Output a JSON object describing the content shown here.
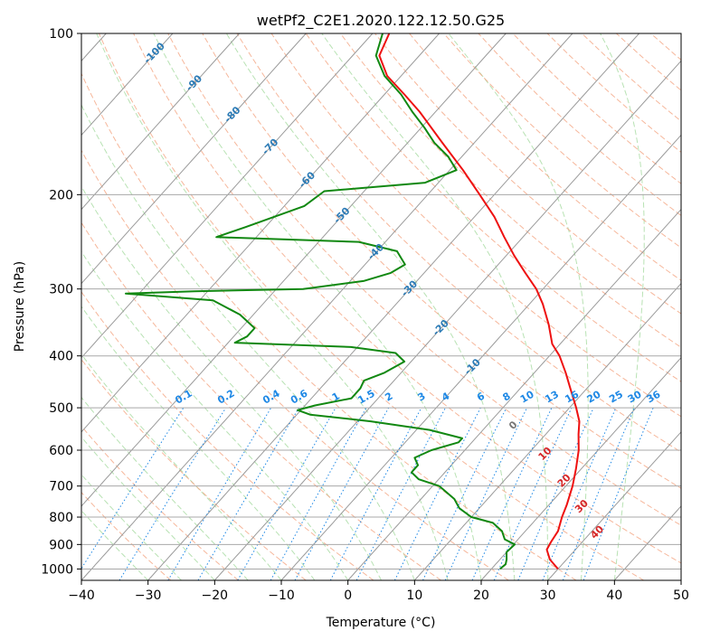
{
  "chart_data": {
    "type": "line",
    "subtype": "skew-t log-p diagram",
    "title": "wetPf2_C2E1.2020.122.12.50.G25",
    "xlabel": "Temperature (°C)",
    "ylabel": "Pressure (hPa)",
    "xlim": [
      -40,
      50
    ],
    "ylim": [
      1050,
      100
    ],
    "y_scale": "log",
    "grid": true,
    "x_ticks": [
      "−40",
      "−30",
      "−20",
      "−10",
      "0",
      "10",
      "20",
      "30",
      "40",
      "50"
    ],
    "y_ticks": [
      "100",
      "200",
      "300",
      "400",
      "500",
      "600",
      "700",
      "800",
      "900",
      "1000"
    ],
    "isotherm_labels": [
      "-100",
      "-90",
      "-80",
      "-70",
      "-60",
      "-50",
      "-40",
      "-30",
      "-20",
      "-10"
    ],
    "mixing_ratio_labels": [
      "0.1",
      "0.2",
      "0.4",
      "0.6",
      "1",
      "1.5",
      "2",
      "3",
      "4",
      "6",
      "8",
      "10",
      "13",
      "16",
      "20",
      "25",
      "30",
      "36"
    ],
    "dry_adiabat_labels": [
      "0",
      "10",
      "20",
      "30",
      "40"
    ],
    "colors": {
      "temperature": "#ee1111",
      "dewpoint": "#118811",
      "isotherm_label": "#2c7bb6",
      "mixing_ratio": "#1e88e5",
      "dry_adiabat": "#f4a582",
      "moist_adiabat": "#a6dba0"
    },
    "series": [
      {
        "name": "Temperature",
        "points": [
          {
            "p": 1000,
            "t": 30.0
          },
          {
            "p": 960,
            "t": 27.5
          },
          {
            "p": 920,
            "t": 25.7
          },
          {
            "p": 890,
            "t": 25.3
          },
          {
            "p": 850,
            "t": 24.9
          },
          {
            "p": 800,
            "t": 23.6
          },
          {
            "p": 760,
            "t": 22.7
          },
          {
            "p": 700,
            "t": 21.0
          },
          {
            "p": 650,
            "t": 19.2
          },
          {
            "p": 600,
            "t": 17.1
          },
          {
            "p": 560,
            "t": 14.9
          },
          {
            "p": 530,
            "t": 13.3
          },
          {
            "p": 500,
            "t": 11.0
          },
          {
            "p": 460,
            "t": 7.5
          },
          {
            "p": 430,
            "t": 4.7
          },
          {
            "p": 400,
            "t": 1.5
          },
          {
            "p": 380,
            "t": -1.2
          },
          {
            "p": 350,
            "t": -4.3
          },
          {
            "p": 320,
            "t": -8.0
          },
          {
            "p": 300,
            "t": -11.0
          },
          {
            "p": 280,
            "t": -14.8
          },
          {
            "p": 260,
            "t": -18.8
          },
          {
            "p": 240,
            "t": -22.8
          },
          {
            "p": 220,
            "t": -27.0
          },
          {
            "p": 200,
            "t": -32.2
          },
          {
            "p": 180,
            "t": -38.0
          },
          {
            "p": 160,
            "t": -44.8
          },
          {
            "p": 140,
            "t": -52.4
          },
          {
            "p": 130,
            "t": -57.0
          },
          {
            "p": 120,
            "t": -62.1
          },
          {
            "p": 110,
            "t": -66.0
          },
          {
            "p": 100,
            "t": -67.5
          }
        ]
      },
      {
        "name": "Dewpoint",
        "points": [
          {
            "p": 1000,
            "t": 21.3
          },
          {
            "p": 980,
            "t": 21.5
          },
          {
            "p": 960,
            "t": 21.0
          },
          {
            "p": 930,
            "t": 20.0
          },
          {
            "p": 900,
            "t": 20.2
          },
          {
            "p": 880,
            "t": 18.0
          },
          {
            "p": 850,
            "t": 16.5
          },
          {
            "p": 820,
            "t": 14.0
          },
          {
            "p": 800,
            "t": 10.0
          },
          {
            "p": 770,
            "t": 7.0
          },
          {
            "p": 740,
            "t": 5.0
          },
          {
            "p": 700,
            "t": 1.0
          },
          {
            "p": 680,
            "t": -3.0
          },
          {
            "p": 660,
            "t": -5.0
          },
          {
            "p": 640,
            "t": -5.0
          },
          {
            "p": 620,
            "t": -6.5
          },
          {
            "p": 600,
            "t": -5.0
          },
          {
            "p": 580,
            "t": -2.0
          },
          {
            "p": 570,
            "t": -2.0
          },
          {
            "p": 550,
            "t": -8.0
          },
          {
            "p": 530,
            "t": -18.0
          },
          {
            "p": 515,
            "t": -28.0
          },
          {
            "p": 505,
            "t": -30.5
          },
          {
            "p": 495,
            "t": -28.5
          },
          {
            "p": 480,
            "t": -24.0
          },
          {
            "p": 460,
            "t": -24.0
          },
          {
            "p": 445,
            "t": -24.5
          },
          {
            "p": 430,
            "t": -22.5
          },
          {
            "p": 410,
            "t": -21.0
          },
          {
            "p": 395,
            "t": -23.5
          },
          {
            "p": 385,
            "t": -31.0
          },
          {
            "p": 378,
            "t": -49.0
          },
          {
            "p": 368,
            "t": -48.0
          },
          {
            "p": 355,
            "t": -48.0
          },
          {
            "p": 335,
            "t": -52.0
          },
          {
            "p": 315,
            "t": -58.0
          },
          {
            "p": 306,
            "t": -72.0
          },
          {
            "p": 303,
            "t": -62.0
          },
          {
            "p": 300,
            "t": -46.0
          },
          {
            "p": 290,
            "t": -38.0
          },
          {
            "p": 280,
            "t": -35.0
          },
          {
            "p": 270,
            "t": -34.0
          },
          {
            "p": 255,
            "t": -37.0
          },
          {
            "p": 245,
            "t": -44.0
          },
          {
            "p": 240,
            "t": -66.0
          },
          {
            "p": 230,
            "t": -63.0
          },
          {
            "p": 210,
            "t": -57.0
          },
          {
            "p": 197,
            "t": -56.0
          },
          {
            "p": 190,
            "t": -42.0
          },
          {
            "p": 180,
            "t": -39.0
          },
          {
            "p": 170,
            "t": -42.0
          },
          {
            "p": 160,
            "t": -46.0
          },
          {
            "p": 150,
            "t": -49.5
          },
          {
            "p": 140,
            "t": -53.5
          },
          {
            "p": 130,
            "t": -57.5
          },
          {
            "p": 120,
            "t": -62.5
          },
          {
            "p": 110,
            "t": -66.5
          },
          {
            "p": 100,
            "t": -68.5
          }
        ]
      }
    ]
  }
}
